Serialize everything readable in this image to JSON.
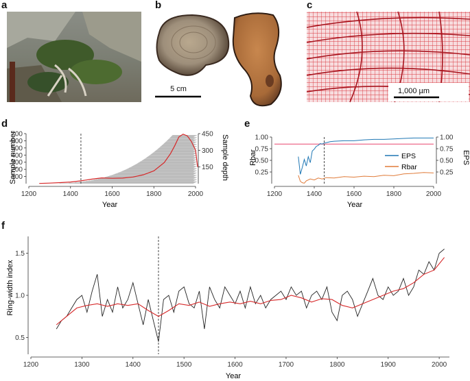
{
  "panels": {
    "a": {
      "letter": "a"
    },
    "b": {
      "letter": "b",
      "scale_label": "5 cm"
    },
    "c": {
      "letter": "c",
      "scale_label": "1,000 µm"
    },
    "d": {
      "letter": "d"
    },
    "e": {
      "letter": "e"
    },
    "f": {
      "letter": "f"
    }
  },
  "chart_data": [
    {
      "id": "d",
      "type": "line",
      "xlabel": "Year",
      "ylabel": "Sample number",
      "ylabel_right": "Sample depth",
      "xlim": [
        1200,
        2000
      ],
      "ylim": [
        0,
        700
      ],
      "ylim_right": [
        0,
        450
      ],
      "x_ticks": [
        1200,
        1400,
        1600,
        1800,
        2000
      ],
      "y_ticks": [
        100,
        200,
        300,
        400,
        500,
        600,
        700
      ],
      "y_ticks_right": [
        150,
        300,
        450
      ],
      "marker_year": 1450,
      "series": [
        {
          "color": "#d62728",
          "axis": "right",
          "x": [
            1250,
            1300,
            1350,
            1400,
            1450,
            1500,
            1550,
            1600,
            1650,
            1700,
            1750,
            1800,
            1850,
            1880,
            1900,
            1920,
            1940,
            1960,
            1980,
            2000,
            2010
          ],
          "y": [
            2,
            5,
            9,
            15,
            25,
            40,
            52,
            48,
            50,
            60,
            80,
            115,
            190,
            270,
            340,
            420,
            445,
            430,
            380,
            300,
            150
          ]
        }
      ],
      "grey_bars": "sample lifespans"
    },
    {
      "id": "e",
      "type": "line",
      "xlabel": "Year",
      "ylabel": "Rbar",
      "ylabel_right": "EPS",
      "xlim": [
        1200,
        2000
      ],
      "ylim": [
        0,
        1
      ],
      "ylim_right": [
        0,
        1
      ],
      "x_ticks": [
        1200,
        1400,
        1600,
        1800,
        2000
      ],
      "y_ticks": [
        0.25,
        0.5,
        0.75,
        1.0
      ],
      "y_tick_labels": [
        "0.25",
        "0.50",
        "0.75",
        "1.00"
      ],
      "y_ticks_right": [
        0.25,
        0.5,
        0.75,
        1.0
      ],
      "y_tick_labels_right": [
        "0.25",
        "0.50",
        "0.75",
        "1.00"
      ],
      "marker_year": 1450,
      "threshold": 0.85,
      "legend_position": "center-right",
      "series": [
        {
          "name": "EPS",
          "color": "#1f77b4",
          "x": [
            1320,
            1330,
            1340,
            1350,
            1360,
            1370,
            1380,
            1390,
            1400,
            1410,
            1420,
            1430,
            1440,
            1450,
            1460,
            1480,
            1500,
            1550,
            1600,
            1650,
            1700,
            1750,
            1800,
            1850,
            1900,
            1950,
            2000
          ],
          "y": [
            0.58,
            0.2,
            0.35,
            0.52,
            0.38,
            0.58,
            0.45,
            0.7,
            0.74,
            0.8,
            0.82,
            0.86,
            0.85,
            0.87,
            0.88,
            0.9,
            0.91,
            0.92,
            0.92,
            0.94,
            0.95,
            0.95,
            0.96,
            0.97,
            0.98,
            0.98,
            0.98
          ]
        },
        {
          "name": "Rbar",
          "color": "#e07b39",
          "x": [
            1320,
            1330,
            1340,
            1350,
            1360,
            1380,
            1400,
            1420,
            1440,
            1460,
            1500,
            1550,
            1600,
            1650,
            1700,
            1750,
            1800,
            1850,
            1900,
            1950,
            2000
          ],
          "y": [
            0.18,
            0.05,
            0.02,
            0.01,
            0.06,
            0.1,
            0.08,
            0.12,
            0.1,
            0.13,
            0.12,
            0.15,
            0.14,
            0.16,
            0.15,
            0.18,
            0.17,
            0.21,
            0.22,
            0.24,
            0.23
          ]
        }
      ]
    },
    {
      "id": "f",
      "type": "line",
      "xlabel": "Year",
      "ylabel": "Ring-width index",
      "xlim": [
        1200,
        2020
      ],
      "ylim": [
        0.3,
        1.7
      ],
      "x_ticks": [
        1200,
        1300,
        1400,
        1500,
        1600,
        1700,
        1800,
        1900,
        2000
      ],
      "y_ticks": [
        0.5,
        1.0,
        1.5
      ],
      "y_tick_labels": [
        "0.5",
        "1.0",
        "1.5"
      ],
      "marker_year": 1450,
      "series": [
        {
          "color": "#222222",
          "kind": "annual",
          "x": [
            1250,
            1260,
            1270,
            1280,
            1290,
            1300,
            1310,
            1320,
            1330,
            1340,
            1350,
            1360,
            1370,
            1380,
            1390,
            1400,
            1410,
            1420,
            1430,
            1440,
            1450,
            1460,
            1470,
            1480,
            1490,
            1500,
            1510,
            1520,
            1530,
            1540,
            1550,
            1560,
            1570,
            1580,
            1590,
            1600,
            1610,
            1620,
            1630,
            1640,
            1650,
            1660,
            1670,
            1680,
            1690,
            1700,
            1710,
            1720,
            1730,
            1740,
            1750,
            1760,
            1770,
            1780,
            1790,
            1800,
            1810,
            1820,
            1830,
            1840,
            1850,
            1860,
            1870,
            1880,
            1890,
            1900,
            1910,
            1920,
            1930,
            1940,
            1950,
            1960,
            1970,
            1980,
            1990,
            2000,
            2010
          ],
          "y": [
            0.6,
            0.7,
            0.75,
            0.85,
            0.95,
            1.0,
            0.8,
            1.05,
            1.25,
            0.75,
            0.95,
            0.8,
            1.1,
            0.85,
            0.95,
            1.15,
            0.9,
            0.65,
            0.95,
            0.7,
            0.45,
            0.95,
            1.0,
            0.8,
            1.05,
            1.1,
            0.9,
            0.85,
            1.05,
            0.6,
            1.1,
            0.95,
            0.85,
            1.1,
            1.0,
            0.9,
            1.05,
            0.85,
            1.1,
            0.9,
            1.0,
            0.85,
            0.95,
            1.0,
            1.05,
            0.95,
            1.1,
            1.0,
            1.05,
            0.85,
            1.0,
            1.05,
            0.95,
            1.1,
            0.8,
            0.7,
            1.0,
            1.05,
            0.95,
            0.75,
            0.9,
            1.05,
            1.2,
            1.0,
            0.95,
            1.1,
            1.0,
            1.05,
            1.2,
            1.0,
            1.1,
            1.3,
            1.25,
            1.4,
            1.3,
            1.5,
            1.55
          ]
        },
        {
          "color": "#d62728",
          "kind": "smoothed",
          "x": [
            1250,
            1270,
            1290,
            1310,
            1330,
            1350,
            1370,
            1390,
            1410,
            1430,
            1450,
            1470,
            1490,
            1510,
            1530,
            1550,
            1570,
            1590,
            1610,
            1630,
            1650,
            1670,
            1690,
            1710,
            1730,
            1750,
            1770,
            1790,
            1810,
            1830,
            1850,
            1870,
            1890,
            1910,
            1930,
            1950,
            1970,
            1990,
            2010
          ],
          "y": [
            0.65,
            0.75,
            0.85,
            0.88,
            0.9,
            0.87,
            0.9,
            0.88,
            0.9,
            0.82,
            0.75,
            0.82,
            0.9,
            0.88,
            0.92,
            0.87,
            0.9,
            0.92,
            0.9,
            0.93,
            0.9,
            0.94,
            0.95,
            1.0,
            0.97,
            0.92,
            0.96,
            0.95,
            0.88,
            0.85,
            0.9,
            0.95,
            1.0,
            1.05,
            1.08,
            1.15,
            1.25,
            1.3,
            1.45
          ]
        }
      ]
    }
  ]
}
